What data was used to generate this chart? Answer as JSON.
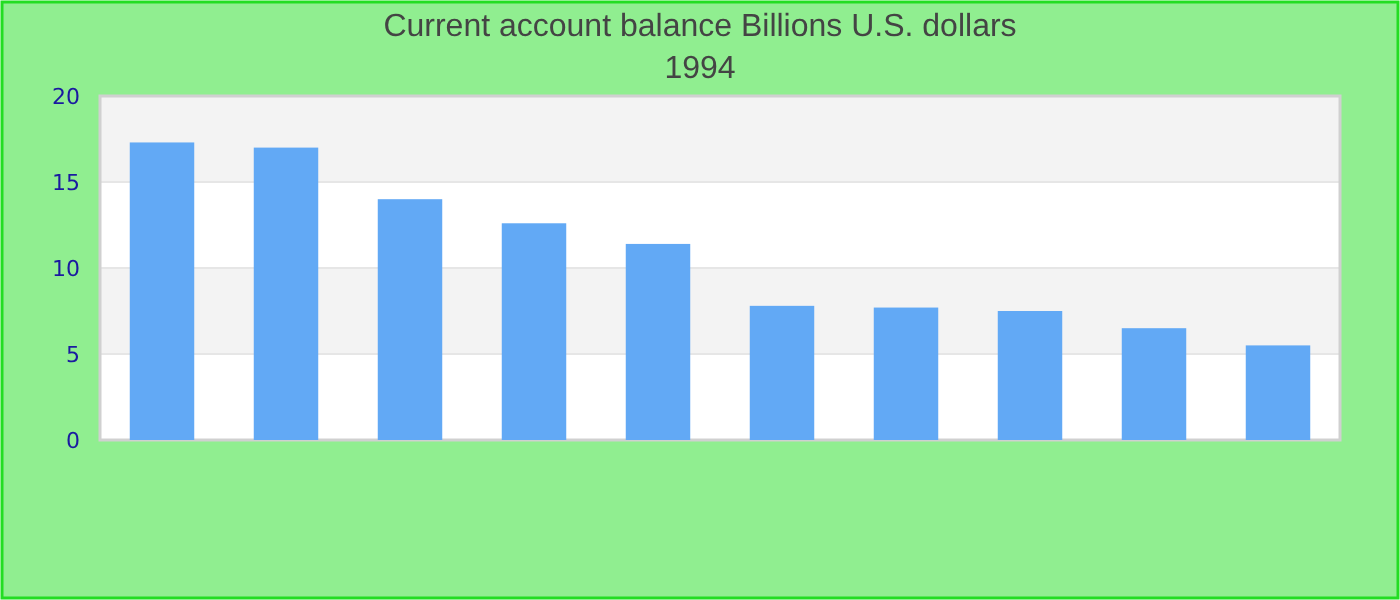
{
  "chart_data": {
    "type": "bar",
    "title": "Current account balance Billions U.S. dollars",
    "subtitle": "1994",
    "categories": [
      null,
      null,
      null,
      null,
      null,
      null,
      null,
      null,
      null,
      null
    ],
    "values": [
      17.3,
      17.0,
      14.0,
      12.6,
      11.4,
      7.8,
      7.7,
      7.5,
      6.5,
      5.5
    ],
    "color": "#62a9f5",
    "ylim": [
      0,
      20
    ],
    "yticks": [
      0,
      5,
      10,
      15,
      20
    ],
    "grid": "y"
  }
}
